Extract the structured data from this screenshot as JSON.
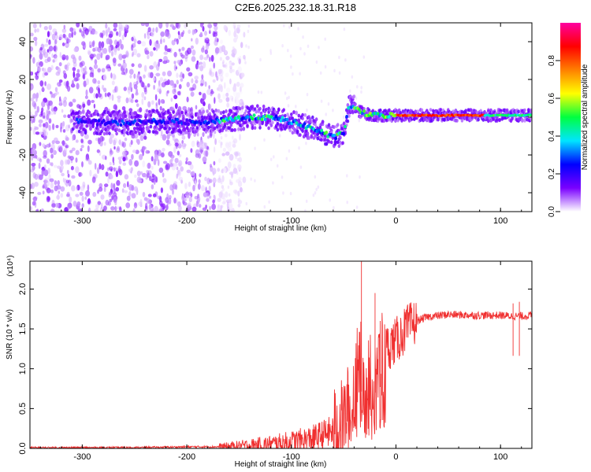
{
  "title": "C2E6.2025.232.18.31.R18",
  "chart_data": [
    {
      "type": "heatmap",
      "xlabel": "Height of straight line (km)",
      "ylabel": "Frequency (Hz)",
      "xlim": [
        -350,
        130
      ],
      "ylim": [
        -50,
        50
      ],
      "xticks": [
        -300,
        -200,
        -100,
        0,
        100
      ],
      "yticks": [
        -40,
        -20,
        0,
        20,
        40
      ],
      "colorbar": {
        "label": "Normalized spectral amplitude",
        "range": [
          0,
          1
        ],
        "ticks": [
          0.0,
          0.2,
          0.4,
          0.6,
          0.8
        ],
        "tick_labels": [
          "0.0",
          "0.2",
          "0.4",
          "0.6",
          "0.8"
        ],
        "colormap": [
          "#ffffff",
          "#7a00ff",
          "#0000ff",
          "#00e5ff",
          "#00ff40",
          "#ffff00",
          "#ff8000",
          "#ff0000",
          "#ff00a0"
        ]
      },
      "ridge": {
        "x": [
          -310,
          -280,
          -250,
          -220,
          -190,
          -160,
          -130,
          -110,
          -90,
          -70,
          -60,
          -50,
          -45,
          -40,
          -35,
          -30,
          -20,
          0,
          50,
          100,
          130
        ],
        "y": [
          -2,
          -3,
          -3,
          -2,
          -3,
          -1,
          0,
          -1,
          -4,
          -8,
          -11,
          -8,
          5,
          6,
          3,
          2,
          1,
          1,
          1,
          1,
          1
        ]
      },
      "noise_region_x": [
        -350,
        -170
      ]
    },
    {
      "type": "line",
      "xlabel": "Height of straight line (km)",
      "ylabel": "SNR (10 * v/v)",
      "y_multiplier": "(x10⁴)",
      "xlim": [
        -350,
        130
      ],
      "ylim": [
        0,
        2.35
      ],
      "xticks": [
        -300,
        -200,
        -100,
        0,
        100
      ],
      "yticks": [
        0.0,
        0.5,
        1.0,
        1.5,
        2.0
      ],
      "ytick_labels": [
        "0.0",
        "0.5",
        "1.0",
        "1.5",
        "2.0"
      ],
      "color": "#f03030",
      "series": [
        {
          "x": [
            -350,
            -300,
            -250,
            -200,
            -170,
            -150,
            -120,
            -100,
            -80,
            -60,
            -50,
            -45,
            -40,
            -35,
            -30,
            -25,
            -20,
            -15,
            -10,
            0,
            10,
            20,
            30,
            50,
            80,
            100,
            110,
            120,
            130
          ],
          "y": [
            0.01,
            0.01,
            0.01,
            0.02,
            0.02,
            0.03,
            0.05,
            0.08,
            0.12,
            0.22,
            0.35,
            0.55,
            0.8,
            1.1,
            0.9,
            0.95,
            1.0,
            1.1,
            1.25,
            1.35,
            1.5,
            1.6,
            1.65,
            1.68,
            1.67,
            1.67,
            1.66,
            1.66,
            1.67
          ]
        }
      ],
      "spikes": [
        {
          "x": -33,
          "y": 2.35
        },
        {
          "x": -20,
          "y": 1.95
        },
        {
          "x": -15,
          "y": 1.6
        },
        {
          "x": 112,
          "y": 1.82
        },
        {
          "x": 118,
          "y": 1.84
        }
      ]
    }
  ]
}
